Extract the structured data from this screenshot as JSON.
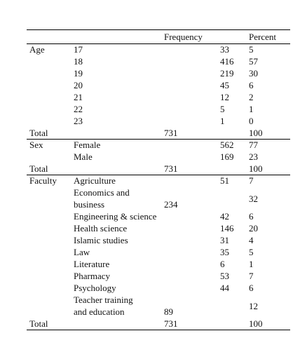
{
  "table": {
    "headers": [
      "Frequency",
      "Percent"
    ],
    "sections": [
      {
        "label": "Age",
        "rows": [
          {
            "item": [
              "17"
            ],
            "frequency": 33,
            "percent": 5
          },
          {
            "item": [
              "18"
            ],
            "frequency": 416,
            "percent": 57
          },
          {
            "item": [
              "19"
            ],
            "frequency": 219,
            "percent": 30
          },
          {
            "item": [
              "20"
            ],
            "frequency": 45,
            "percent": 6
          },
          {
            "item": [
              "21"
            ],
            "frequency": 12,
            "percent": 2
          },
          {
            "item": [
              "22"
            ],
            "frequency": 5,
            "percent": 1
          },
          {
            "item": [
              "23"
            ],
            "frequency": 1,
            "percent": 0
          }
        ],
        "total": {
          "label": "Total",
          "frequency": 731,
          "percent": 100
        }
      },
      {
        "label": "Sex",
        "rows": [
          {
            "item": [
              "Female"
            ],
            "frequency": 562,
            "percent": 77
          },
          {
            "item": [
              "Male"
            ],
            "frequency": 169,
            "percent": 23
          }
        ],
        "total": {
          "label": "Total",
          "frequency": 731,
          "percent": 100
        }
      },
      {
        "label": "Faculty",
        "rows": [
          {
            "item": [
              "Agriculture"
            ],
            "frequency": 51,
            "percent": 7
          },
          {
            "item": [
              "Economics and",
              "business"
            ],
            "frequency": 234,
            "percent": 32
          },
          {
            "item": [
              "Engineering & science"
            ],
            "frequency": 42,
            "percent": 6
          },
          {
            "item": [
              "Health science"
            ],
            "frequency": 146,
            "percent": 20
          },
          {
            "item": [
              "Islamic studies"
            ],
            "frequency": 31,
            "percent": 4
          },
          {
            "item": [
              "Law"
            ],
            "frequency": 35,
            "percent": 5
          },
          {
            "item": [
              "Literature"
            ],
            "frequency": 6,
            "percent": 1
          },
          {
            "item": [
              "Pharmacy"
            ],
            "frequency": 53,
            "percent": 7
          },
          {
            "item": [
              "Psychology"
            ],
            "frequency": 44,
            "percent": 6
          },
          {
            "item": [
              "Teacher training",
              "and education"
            ],
            "frequency": 89,
            "percent": 12
          }
        ],
        "total": {
          "label": "Total",
          "frequency": 731,
          "percent": 100
        }
      }
    ]
  }
}
